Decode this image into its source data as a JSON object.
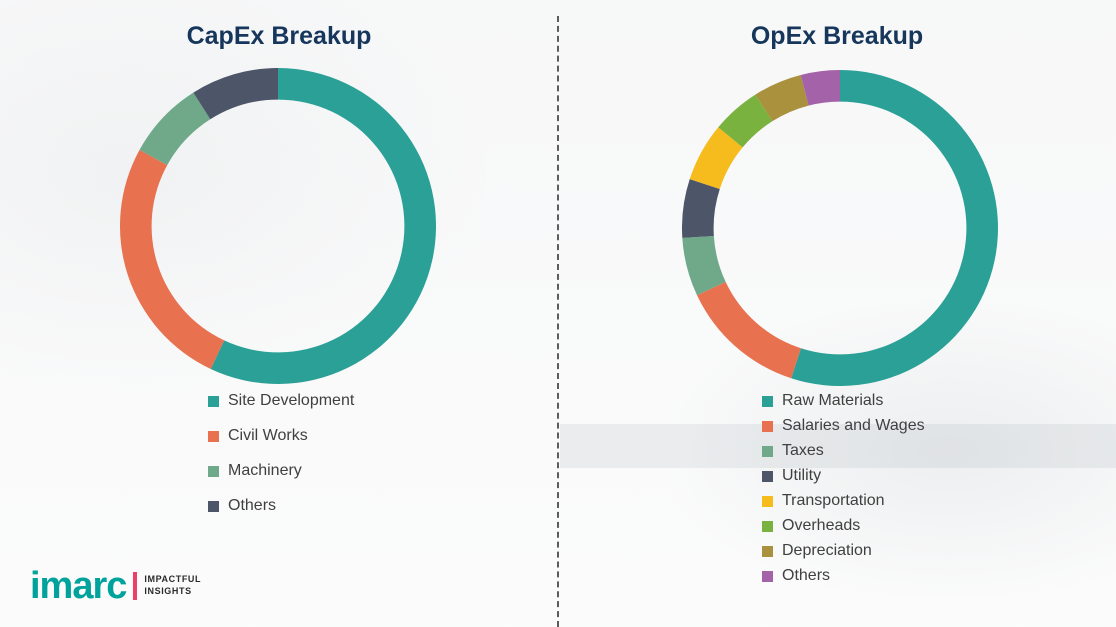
{
  "chart_data": [
    {
      "type": "pie",
      "variant": "donut",
      "title": "CapEx Breakup",
      "labels": [
        "Site Development",
        "Civil Works",
        "Machinery",
        "Others"
      ],
      "values": [
        57,
        26,
        8,
        9
      ],
      "colors": [
        "#2aa096",
        "#e8714f",
        "#6fa98a",
        "#4d5569"
      ],
      "legend_position": "bottom",
      "start_angle": "top",
      "direction": "clockwise"
    },
    {
      "type": "pie",
      "variant": "donut",
      "title": "OpEx Breakup",
      "labels": [
        "Raw Materials",
        "Salaries and Wages",
        "Taxes",
        "Utility",
        "Transportation",
        "Overheads",
        "Depreciation",
        "Others"
      ],
      "values": [
        55,
        13,
        6,
        6,
        6,
        5,
        5,
        4
      ],
      "colors": [
        "#2aa096",
        "#e8714f",
        "#6fa98a",
        "#4d5569",
        "#f6bb1c",
        "#79b23f",
        "#a9913e",
        "#a463a8"
      ],
      "legend_position": "bottom",
      "start_angle": "top",
      "direction": "clockwise"
    }
  ],
  "divider": {
    "style": "dashed-vertical",
    "color": "#5c5c5c"
  },
  "titles": {
    "color": "#16365c"
  },
  "logo": {
    "brand": "imarc",
    "brand_color": "#00a39b",
    "accent_color": "#ec4067",
    "tagline_line1": "IMPACTFUL",
    "tagline_line2": "INSIGHTS"
  }
}
